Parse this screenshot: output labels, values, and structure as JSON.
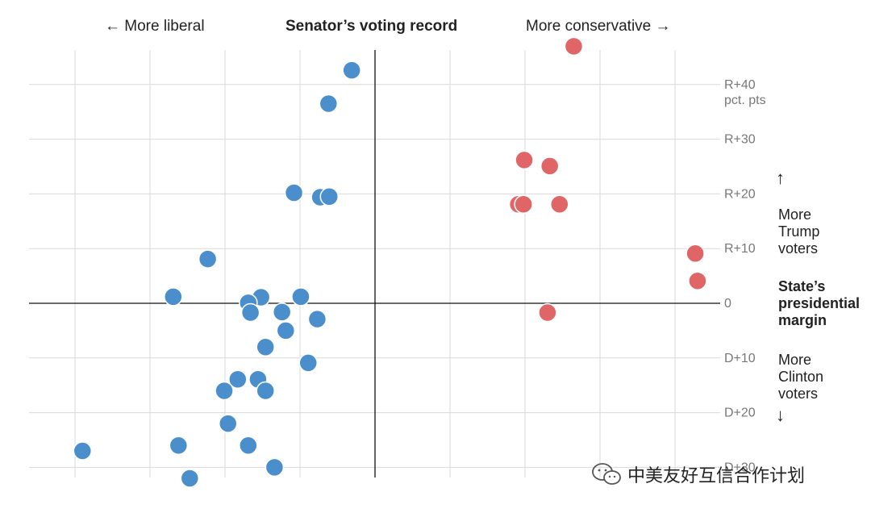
{
  "header": {
    "left_label": "← More liberal",
    "title": "Senator’s voting record",
    "right_label": "More conservative →"
  },
  "side_labels": {
    "up_arrow": "↑",
    "up_text": [
      "More",
      "Trump",
      "voters"
    ],
    "middle_text": [
      "State’s",
      "presidential",
      "margin"
    ],
    "down_text": [
      "More",
      "Clinton",
      "voters"
    ],
    "down_arrow": "↓"
  },
  "watermark": {
    "icon": "wechat-icon",
    "text": "中美友好互信合作计划"
  },
  "chart_data": {
    "type": "scatter",
    "title": "Senator’s voting record",
    "xlabel": "",
    "ylabel": "State’s presidential margin",
    "ylim": [
      -31,
      46
    ],
    "xlim": [
      -46,
      46
    ],
    "grid": true,
    "y_ticks": [
      {
        "value": 40,
        "label": "R+40",
        "sublabel": "pct. pts"
      },
      {
        "value": 30,
        "label": "R+30"
      },
      {
        "value": 20,
        "label": "R+20"
      },
      {
        "value": 10,
        "label": "R+10"
      },
      {
        "value": 0,
        "label": "0"
      },
      {
        "value": -10,
        "label": "D+10"
      },
      {
        "value": -20,
        "label": "D+20"
      },
      {
        "value": -30,
        "label": "D+30"
      }
    ],
    "x_gridlines": [
      -40,
      -30,
      -20,
      -10,
      0,
      10,
      20,
      30,
      40
    ],
    "colors": {
      "democrat": "#4a8fcc",
      "republican": "#df6567"
    },
    "series": [
      {
        "party": "democrat",
        "points": [
          [
            -3.1,
            42.6
          ],
          [
            -6.2,
            36.5
          ],
          [
            -10.8,
            20.2
          ],
          [
            -7.3,
            19.4
          ],
          [
            -6.1,
            19.5
          ],
          [
            -22.3,
            8.1
          ],
          [
            -26.9,
            1.2
          ],
          [
            -15.2,
            1.1
          ],
          [
            -9.9,
            1.2
          ],
          [
            -16.9,
            0.1
          ],
          [
            -16.6,
            -1.7
          ],
          [
            -12.4,
            -1.6
          ],
          [
            -7.7,
            -2.9
          ],
          [
            -11.9,
            -5.0
          ],
          [
            -14.6,
            -8.0
          ],
          [
            -8.9,
            -10.9
          ],
          [
            -18.3,
            -13.9
          ],
          [
            -15.6,
            -13.9
          ],
          [
            -20.1,
            -16.0
          ],
          [
            -14.6,
            -16.0
          ],
          [
            -19.6,
            -22.0
          ],
          [
            -26.2,
            -26.0
          ],
          [
            -16.9,
            -26.0
          ],
          [
            -39.0,
            -27.0
          ],
          [
            -13.4,
            -30.0
          ],
          [
            -24.7,
            -32.0
          ]
        ]
      },
      {
        "party": "republican",
        "points": [
          [
            26.5,
            47.0
          ],
          [
            19.9,
            26.2
          ],
          [
            23.3,
            25.1
          ],
          [
            19.1,
            18.1
          ],
          [
            19.8,
            18.1
          ],
          [
            24.6,
            18.1
          ],
          [
            42.7,
            9.1
          ],
          [
            43.0,
            4.1
          ],
          [
            23.0,
            -1.7
          ]
        ]
      }
    ]
  }
}
